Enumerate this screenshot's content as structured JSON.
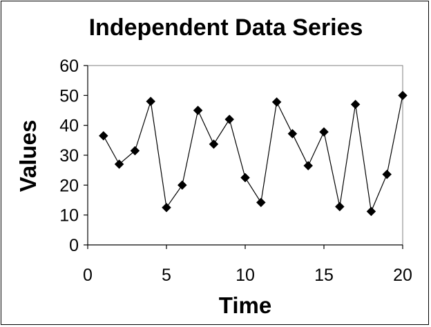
{
  "chart_data": {
    "type": "scatter",
    "title": "Independent Data Series",
    "xlabel": "Time",
    "ylabel": "Values",
    "xlim": [
      0,
      20
    ],
    "ylim": [
      0,
      60
    ],
    "xticks": [
      0,
      5,
      10,
      15,
      20
    ],
    "yticks": [
      0,
      10,
      20,
      30,
      40,
      50,
      60
    ],
    "grid": false,
    "legend": "none",
    "marker": "diamond",
    "line": "straight",
    "series_color": "#000000",
    "series": [
      {
        "x": [
          1,
          2,
          3,
          4,
          5,
          6,
          7,
          8,
          9,
          10,
          11,
          12,
          13,
          14,
          15,
          16,
          17,
          18,
          19,
          20
        ],
        "values": [
          36.5,
          27,
          31.5,
          48,
          12.5,
          20,
          45,
          33.7,
          42,
          22.5,
          14.2,
          47.8,
          37.2,
          26.5,
          37.8,
          12.8,
          47,
          11.2,
          23.6,
          50
        ]
      }
    ]
  }
}
